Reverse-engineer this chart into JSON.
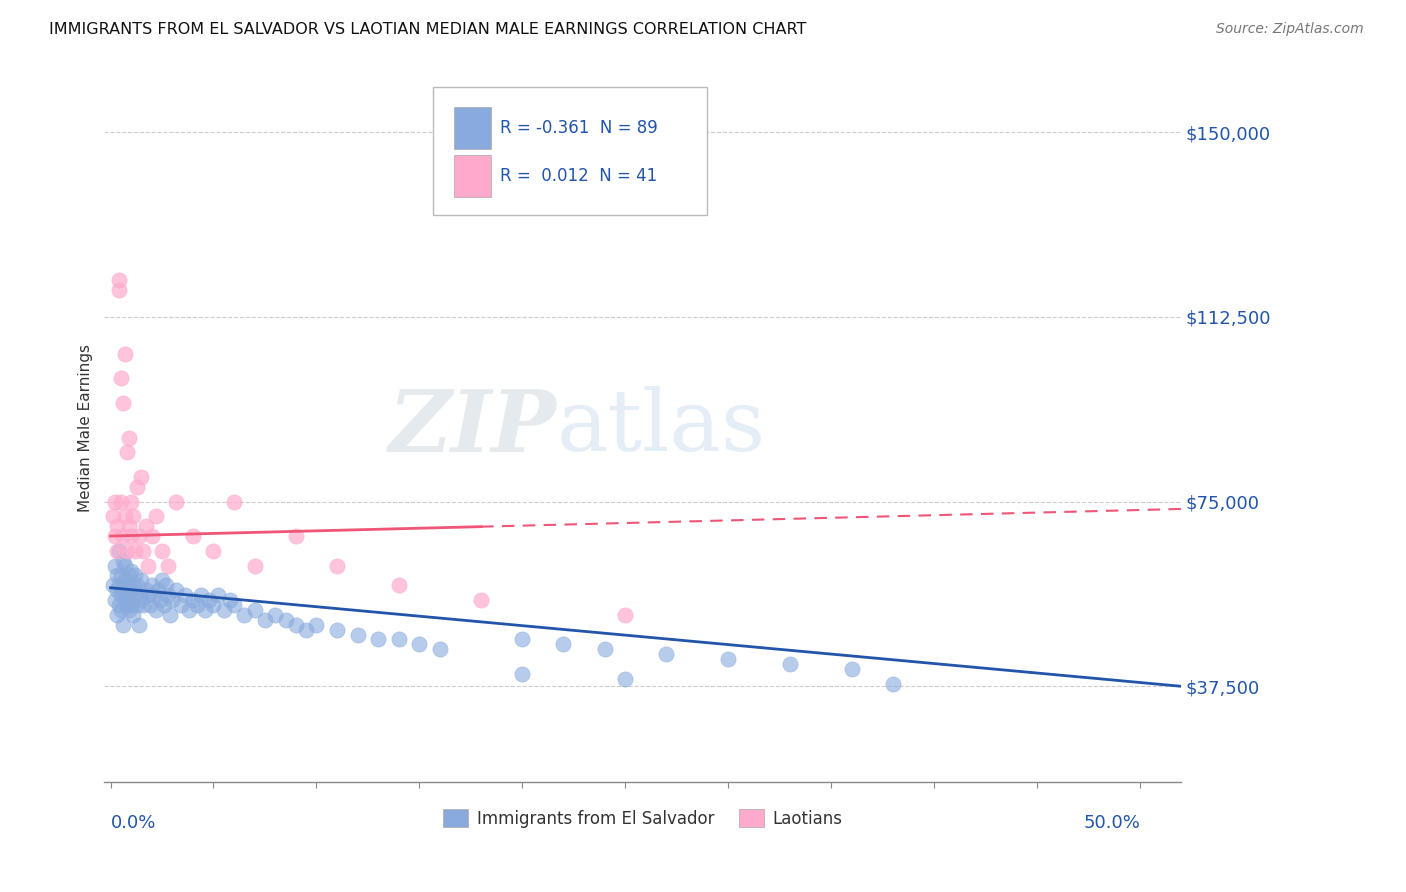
{
  "title": "IMMIGRANTS FROM EL SALVADOR VS LAOTIAN MEDIAN MALE EARNINGS CORRELATION CHART",
  "source": "Source: ZipAtlas.com",
  "ylabel": "Median Male Earnings",
  "ylim": [
    18000,
    162000
  ],
  "xlim": [
    -0.003,
    0.52
  ],
  "legend1_r": "-0.361",
  "legend1_n": "89",
  "legend2_r": "0.012",
  "legend2_n": "41",
  "blue_color": "#88AADD",
  "pink_color": "#FFAACC",
  "trend_blue": "#2255AA",
  "trend_pink": "#EE5577",
  "watermark_zip": "ZIP",
  "watermark_atlas": "atlas",
  "blue_scatter_x": [
    0.001,
    0.002,
    0.002,
    0.003,
    0.003,
    0.003,
    0.004,
    0.004,
    0.004,
    0.005,
    0.005,
    0.005,
    0.006,
    0.006,
    0.006,
    0.007,
    0.007,
    0.007,
    0.008,
    0.008,
    0.008,
    0.009,
    0.009,
    0.01,
    0.01,
    0.01,
    0.011,
    0.011,
    0.012,
    0.012,
    0.013,
    0.013,
    0.014,
    0.014,
    0.015,
    0.015,
    0.016,
    0.017,
    0.018,
    0.019,
    0.02,
    0.021,
    0.022,
    0.023,
    0.024,
    0.025,
    0.026,
    0.027,
    0.028,
    0.029,
    0.03,
    0.032,
    0.034,
    0.036,
    0.038,
    0.04,
    0.042,
    0.044,
    0.046,
    0.048,
    0.05,
    0.052,
    0.055,
    0.058,
    0.06,
    0.065,
    0.07,
    0.075,
    0.08,
    0.085,
    0.09,
    0.095,
    0.1,
    0.11,
    0.12,
    0.13,
    0.14,
    0.15,
    0.16,
    0.2,
    0.22,
    0.24,
    0.27,
    0.3,
    0.33,
    0.36,
    0.2,
    0.25,
    0.38
  ],
  "blue_scatter_y": [
    58000,
    55000,
    62000,
    57000,
    52000,
    60000,
    54000,
    58000,
    65000,
    56000,
    60000,
    53000,
    57000,
    63000,
    50000,
    55000,
    59000,
    62000,
    54000,
    58000,
    56000,
    60000,
    53000,
    57000,
    61000,
    54000,
    58000,
    52000,
    56000,
    60000,
    54000,
    58000,
    56000,
    50000,
    55000,
    59000,
    54000,
    57000,
    56000,
    54000,
    58000,
    56000,
    53000,
    57000,
    55000,
    59000,
    54000,
    58000,
    56000,
    52000,
    55000,
    57000,
    54000,
    56000,
    53000,
    55000,
    54000,
    56000,
    53000,
    55000,
    54000,
    56000,
    53000,
    55000,
    54000,
    52000,
    53000,
    51000,
    52000,
    51000,
    50000,
    49000,
    50000,
    49000,
    48000,
    47000,
    47000,
    46000,
    45000,
    47000,
    46000,
    45000,
    44000,
    43000,
    42000,
    41000,
    40000,
    39000,
    38000
  ],
  "pink_scatter_x": [
    0.001,
    0.002,
    0.002,
    0.003,
    0.003,
    0.004,
    0.004,
    0.005,
    0.005,
    0.006,
    0.006,
    0.007,
    0.007,
    0.008,
    0.008,
    0.009,
    0.009,
    0.01,
    0.01,
    0.011,
    0.012,
    0.013,
    0.014,
    0.015,
    0.016,
    0.017,
    0.018,
    0.02,
    0.022,
    0.025,
    0.028,
    0.032,
    0.04,
    0.05,
    0.06,
    0.07,
    0.09,
    0.11,
    0.14,
    0.18,
    0.25
  ],
  "pink_scatter_y": [
    72000,
    68000,
    75000,
    70000,
    65000,
    120000,
    118000,
    100000,
    75000,
    95000,
    68000,
    105000,
    72000,
    85000,
    65000,
    88000,
    70000,
    68000,
    75000,
    72000,
    65000,
    78000,
    68000,
    80000,
    65000,
    70000,
    62000,
    68000,
    72000,
    65000,
    62000,
    75000,
    68000,
    65000,
    75000,
    62000,
    68000,
    62000,
    58000,
    55000,
    52000
  ],
  "blue_trend_x0": 0.0,
  "blue_trend_x1": 0.52,
  "blue_trend_y0": 57500,
  "blue_trend_y1": 37500,
  "pink_trend_x0": 0.0,
  "pink_trend_x1": 0.52,
  "pink_trend_y0": 68000,
  "pink_trend_y1": 73500
}
